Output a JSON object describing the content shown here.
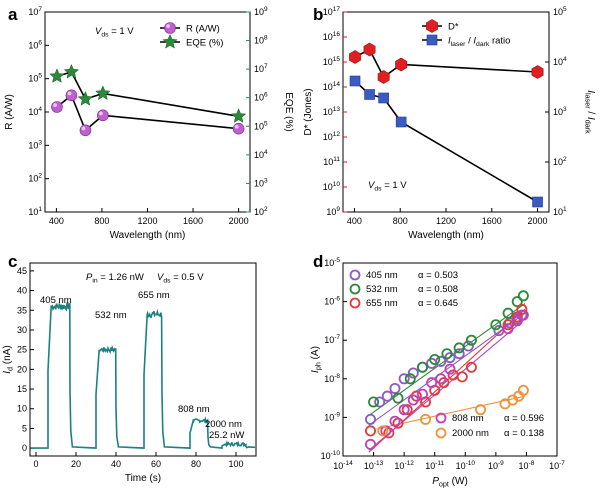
{
  "chart_data": [
    {
      "panel": "a",
      "type": "scatter",
      "xlabel": "Wavelength (nm)",
      "ylabel_left": "R (A/W)",
      "ylabel_right": "EQE (%)",
      "annotation": "V_ds = 1 V",
      "annotation_parts": [
        "V",
        "ds",
        " = 1 V"
      ],
      "xlim": [
        300,
        2100
      ],
      "xticks": [
        "400",
        "800",
        "1200",
        "1600",
        "2000"
      ],
      "ylim_left_log10": [
        1,
        7
      ],
      "yticks_left": [
        "10",
        "10",
        "10",
        "10",
        "10",
        "10",
        "10"
      ],
      "yticks_left_exp": [
        "1",
        "2",
        "3",
        "4",
        "5",
        "6",
        "7"
      ],
      "ylim_right_log10": [
        2,
        9
      ],
      "yticks_right": [
        "10",
        "10",
        "10",
        "10",
        "10",
        "10",
        "10",
        "10"
      ],
      "yticks_right_exp": [
        "2",
        "3",
        "4",
        "5",
        "6",
        "7",
        "8",
        "9"
      ],
      "series": [
        {
          "name": "R (A/W)",
          "axis": "left",
          "color": "#c060d0",
          "marker": "sphere",
          "x": [
            405,
            532,
            655,
            808,
            2000
          ],
          "y_log10": [
            4.15,
            4.5,
            3.45,
            3.9,
            3.5
          ]
        },
        {
          "name": "EQE (%)",
          "axis": "right",
          "color": "#2a8a3a",
          "marker": "star",
          "x": [
            405,
            532,
            655,
            808,
            2000
          ],
          "y_log10": [
            6.75,
            6.9,
            5.95,
            6.15,
            5.35
          ]
        }
      ]
    },
    {
      "panel": "b",
      "type": "scatter",
      "xlabel": "Wavelength (nm)",
      "ylabel_left": "D* (Jones)",
      "ylabel_right": "I_laser / I_dark",
      "ylabel_right_parts": [
        "I",
        "laser",
        " / ",
        "I",
        "dark"
      ],
      "annotation": "V_ds = 1 V",
      "annotation_parts": [
        "V",
        "ds",
        " = 1 V"
      ],
      "xlim": [
        300,
        2100
      ],
      "xticks": [
        "400",
        "800",
        "1200",
        "1600",
        "2000"
      ],
      "ylim_left_log10": [
        9,
        17
      ],
      "yticks_left": [
        "10",
        "10",
        "10",
        "10",
        "10",
        "10",
        "10",
        "10",
        "10"
      ],
      "yticks_left_exp": [
        "9",
        "10",
        "11",
        "12",
        "13",
        "14",
        "15",
        "16",
        "17"
      ],
      "ylim_right_log10": [
        1,
        5
      ],
      "yticks_right": [
        "10",
        "10",
        "10",
        "10",
        "10"
      ],
      "yticks_right_exp": [
        "1",
        "2",
        "3",
        "4",
        "5"
      ],
      "left_color": "#d81818",
      "series": [
        {
          "name": "D*",
          "axis": "left",
          "color": "#e02020",
          "marker": "hexagon",
          "x": [
            405,
            532,
            655,
            808,
            2000
          ],
          "y_log10": [
            15.2,
            15.5,
            14.4,
            14.9,
            14.6
          ]
        },
        {
          "name": "I_laser / I_dark ratio",
          "legend_parts": [
            "I",
            "laser",
            " / ",
            "I",
            "dark",
            " ratio"
          ],
          "axis": "right",
          "color": "#3a5cc0",
          "marker": "square",
          "x": [
            405,
            532,
            655,
            808,
            2000
          ],
          "y_log10": [
            3.62,
            3.35,
            3.28,
            2.8,
            1.2
          ]
        }
      ]
    },
    {
      "panel": "c",
      "type": "line",
      "xlabel": "Time (s)",
      "ylabel": "I_d (nA)",
      "ylabel_parts": [
        "I",
        "d",
        " (nA)"
      ],
      "annotation": "P_in = 1.26 nW  V_ds = 0.5 V",
      "annotation_parts": [
        "P",
        "in",
        " = 1.26 nW",
        "V",
        "ds",
        " = 0.5 V"
      ],
      "xlim": [
        -3,
        110
      ],
      "xticks": [
        "0",
        "20",
        "40",
        "60",
        "80",
        "100"
      ],
      "ylim": [
        -2,
        47
      ],
      "yticks": [
        "0",
        "5",
        "10",
        "15",
        "20",
        "25",
        "30",
        "35",
        "40",
        "45"
      ],
      "color": "#1d8080",
      "pulses": [
        {
          "label": "405 nm",
          "on": 6,
          "off": 17,
          "level": 36
        },
        {
          "label": "532 nm",
          "on": 30,
          "off": 40,
          "level": 25
        },
        {
          "label": "655 nm",
          "on": 54,
          "off": 63,
          "level": 34
        },
        {
          "label": "808 nm",
          "on": 77,
          "off": 86,
          "level": 7
        },
        {
          "label": "2000 nm",
          "extra": "25.2 nW",
          "on": 93,
          "off": 105,
          "level": 1
        }
      ],
      "label_color": "#d43a8c"
    },
    {
      "panel": "d",
      "type": "scatter",
      "xlabel": "P_opt (W)",
      "xlabel_parts": [
        "P",
        "opt",
        " (W)"
      ],
      "ylabel": "I_ph (A)",
      "ylabel_parts": [
        "I",
        "ph",
        " (A)"
      ],
      "xlim_log10": [
        -14,
        -7
      ],
      "xticks": [
        "10",
        "10",
        "10",
        "10",
        "10",
        "10",
        "10",
        "10"
      ],
      "xticks_exp": [
        "-14",
        "-13",
        "-12",
        "-11",
        "-10",
        "-9",
        "-8",
        "-7"
      ],
      "ylim_log10": [
        -10,
        -5
      ],
      "yticks": [
        "10",
        "10",
        "10",
        "10",
        "10",
        "10"
      ],
      "yticks_exp": [
        "-10",
        "-9",
        "-8",
        "-7",
        "-6",
        "-5"
      ],
      "series": [
        {
          "name": "405 nm",
          "alpha": "α = 0.503",
          "color": "#8a5bc4",
          "x_log10": [
            -13.1,
            -12.8,
            -12.55,
            -12.3,
            -12.0,
            -11.7,
            -11.4,
            -11.1,
            -10.8,
            -10.5,
            -10.2,
            -9.9,
            -8.9,
            -8.55,
            -8.3,
            -8.1
          ],
          "y_log10": [
            -9.05,
            -8.6,
            -8.45,
            -8.25,
            -8.0,
            -7.85,
            -7.7,
            -7.6,
            -7.55,
            -7.45,
            -7.35,
            -7.15,
            -6.75,
            -6.55,
            -6.45,
            -6.35
          ]
        },
        {
          "name": "532 nm",
          "alpha": "α = 0.508",
          "color": "#2a8a3a",
          "x_log10": [
            -13.0,
            -12.2,
            -11.8,
            -11.4,
            -11.0,
            -10.6,
            -10.2,
            -9.8,
            -9.0,
            -8.6,
            -8.3,
            -8.1
          ],
          "y_log10": [
            -8.6,
            -8.5,
            -8.0,
            -7.7,
            -7.5,
            -7.35,
            -7.2,
            -7.0,
            -6.6,
            -6.3,
            -6.0,
            -5.85
          ]
        },
        {
          "name": "655 nm",
          "alpha": "α = 0.645",
          "color": "#e03a3a",
          "x_log10": [
            -13.1,
            -12.5,
            -12.2,
            -11.9,
            -11.6,
            -11.3,
            -11.0,
            -10.7,
            -10.4,
            -10.1,
            -9.8,
            -8.6,
            -8.3,
            -8.15
          ],
          "y_log10": [
            -9.35,
            -9.4,
            -9.15,
            -8.8,
            -8.45,
            -8.6,
            -8.3,
            -8.1,
            -7.9,
            -7.95,
            -7.7,
            -6.6,
            -6.4,
            -6.2
          ]
        },
        {
          "name": "808 nm",
          "alpha": "α = 0.596",
          "color": "#c040b8",
          "x_log10": [
            -13.1,
            -12.6,
            -12.3,
            -12.0,
            -11.7,
            -11.4,
            -11.1,
            -10.8,
            -10.5,
            -8.6,
            -8.3,
            -8.15
          ],
          "y_log10": [
            -9.7,
            -9.35,
            -9.1,
            -8.8,
            -8.55,
            -8.4,
            -8.1,
            -8.0,
            -7.75,
            -6.7,
            -6.5,
            -6.35
          ]
        },
        {
          "name": "2000 nm",
          "alpha": "α = 0.138",
          "color": "#f0923a",
          "x_log10": [
            -12.7,
            -11.3,
            -9.5,
            -8.7,
            -8.45,
            -8.25,
            -8.1
          ],
          "y_log10": [
            -9.35,
            -9.05,
            -8.8,
            -8.65,
            -8.55,
            -8.45,
            -8.3
          ]
        }
      ],
      "fits": [
        {
          "color": "#8a5bc4",
          "x_log10": [
            -13.15,
            -8.05
          ],
          "y_log10": [
            -9.2,
            -6.3
          ]
        },
        {
          "color": "#2a8a3a",
          "x_log10": [
            -13.15,
            -8.05
          ],
          "y_log10": [
            -8.95,
            -6.05
          ]
        },
        {
          "color": "#e03a3a",
          "x_log10": [
            -13.15,
            -8.05
          ],
          "y_log10": [
            -9.9,
            -6.2
          ]
        },
        {
          "color": "#c040b8",
          "x_log10": [
            -13.15,
            -8.05
          ],
          "y_log10": [
            -9.85,
            -6.45
          ]
        },
        {
          "color": "#f0923a",
          "x_log10": [
            -12.9,
            -8.05
          ],
          "y_log10": [
            -9.3,
            -8.45
          ]
        }
      ]
    }
  ]
}
